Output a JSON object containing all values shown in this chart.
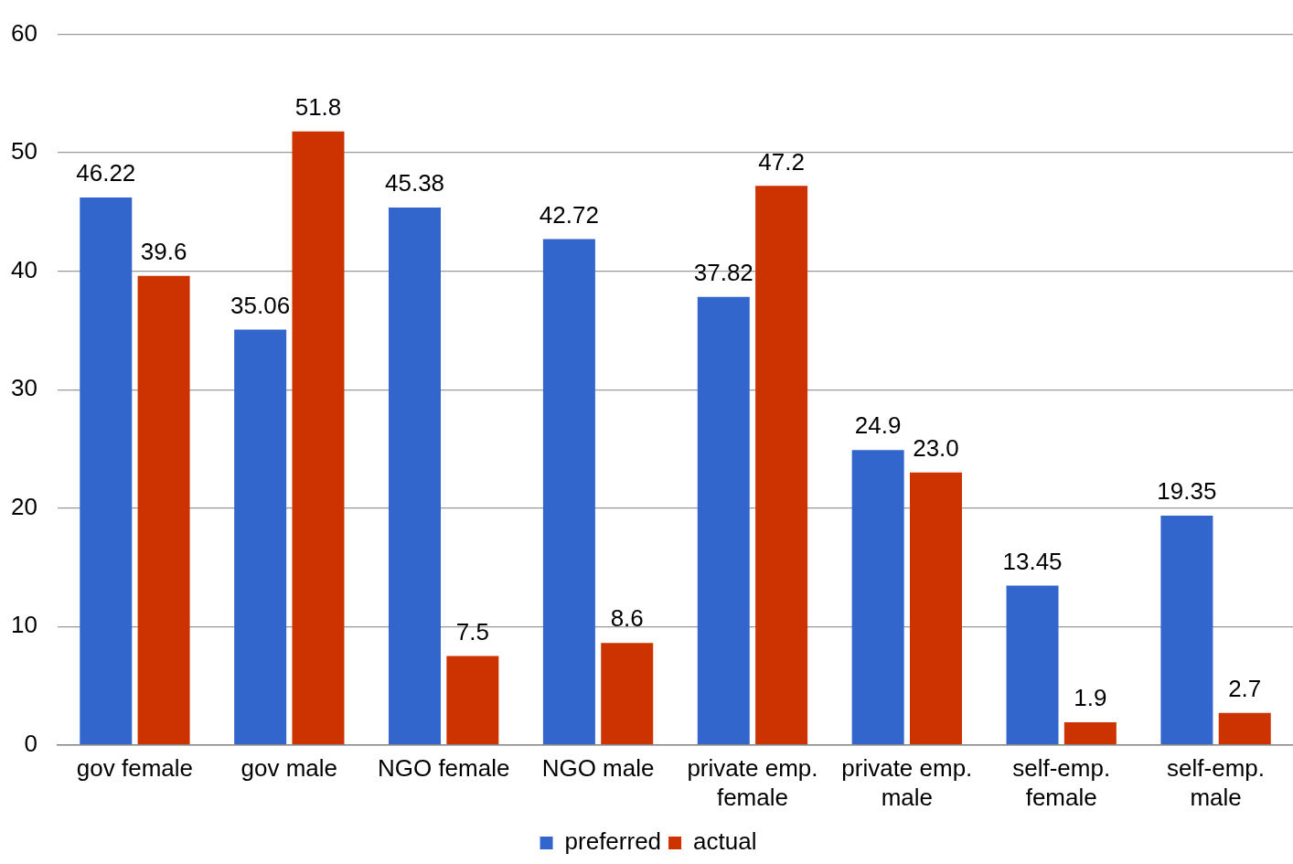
{
  "chart_data": {
    "type": "bar",
    "categories": [
      "gov female",
      "gov male",
      "NGO female",
      "NGO male",
      "private emp. female",
      "private emp. male",
      "self-emp. female",
      "self-emp. male"
    ],
    "series": [
      {
        "name": "preferred",
        "color": "#3366cc",
        "values": [
          46.22,
          35.06,
          45.38,
          42.72,
          37.82,
          24.9,
          13.45,
          19.35
        ],
        "value_labels": [
          "46.22",
          "35.06",
          "45.38",
          "42.72",
          "37.82",
          "24.9",
          "13.45",
          "19.35"
        ]
      },
      {
        "name": "actual",
        "color": "#cc3300",
        "values": [
          39.6,
          51.8,
          7.5,
          8.6,
          47.2,
          23.0,
          1.9,
          2.7
        ],
        "value_labels": [
          "39.6",
          "51.8",
          "7.5",
          "8.6",
          "47.2",
          "23.0",
          "1.9",
          "2.7"
        ]
      }
    ],
    "ylim": [
      0,
      60
    ],
    "yticks": [
      0,
      10,
      20,
      30,
      40,
      50,
      60
    ],
    "grid": "y",
    "legend": "bottom"
  }
}
